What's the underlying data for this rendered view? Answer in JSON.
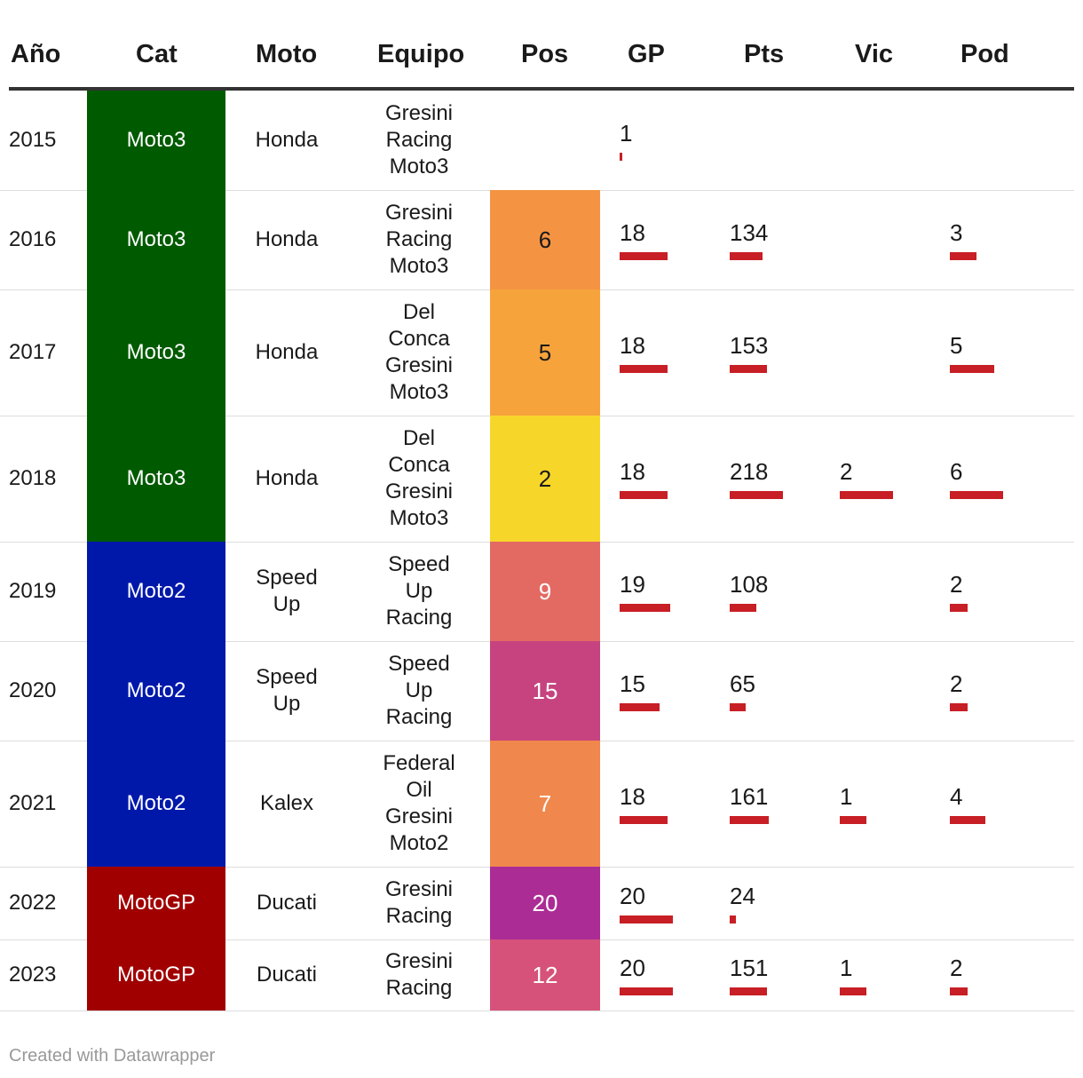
{
  "chart_data": {
    "type": "table",
    "columns": [
      "Año",
      "Cat",
      "Moto",
      "Equipo",
      "Pos",
      "GP",
      "Pts",
      "Vic",
      "Pod"
    ],
    "rows": [
      {
        "year": "2015",
        "cat": "Moto3",
        "moto": [
          "Honda"
        ],
        "team": [
          "Gresini",
          "Racing",
          "Moto3"
        ],
        "pos": "",
        "gp": 1,
        "pts": null,
        "vic": null,
        "pod": null
      },
      {
        "year": "2016",
        "cat": "Moto3",
        "moto": [
          "Honda"
        ],
        "team": [
          "Gresini",
          "Racing",
          "Moto3"
        ],
        "pos": "6",
        "gp": 18,
        "pts": 134,
        "vic": null,
        "pod": 3
      },
      {
        "year": "2017",
        "cat": "Moto3",
        "moto": [
          "Honda"
        ],
        "team": [
          "Del",
          "Conca",
          "Gresini",
          "Moto3"
        ],
        "pos": "5",
        "gp": 18,
        "pts": 153,
        "vic": null,
        "pod": 5
      },
      {
        "year": "2018",
        "cat": "Moto3",
        "moto": [
          "Honda"
        ],
        "team": [
          "Del",
          "Conca",
          "Gresini",
          "Moto3"
        ],
        "pos": "2",
        "gp": 18,
        "pts": 218,
        "vic": 2,
        "pod": 6
      },
      {
        "year": "2019",
        "cat": "Moto2",
        "moto": [
          "Speed",
          "Up"
        ],
        "team": [
          "Speed",
          "Up",
          "Racing"
        ],
        "pos": "9",
        "gp": 19,
        "pts": 108,
        "vic": null,
        "pod": 2
      },
      {
        "year": "2020",
        "cat": "Moto2",
        "moto": [
          "Speed",
          "Up"
        ],
        "team": [
          "Speed",
          "Up",
          "Racing"
        ],
        "pos": "15",
        "gp": 15,
        "pts": 65,
        "vic": null,
        "pod": 2
      },
      {
        "year": "2021",
        "cat": "Moto2",
        "moto": [
          "Kalex"
        ],
        "team": [
          "Federal",
          "Oil",
          "Gresini",
          "Moto2"
        ],
        "pos": "7",
        "gp": 18,
        "pts": 161,
        "vic": 1,
        "pod": 4
      },
      {
        "year": "2022",
        "cat": "MotoGP",
        "moto": [
          "Ducati"
        ],
        "team": [
          "Gresini",
          "Racing"
        ],
        "pos": "20",
        "gp": 20,
        "pts": 24,
        "vic": null,
        "pod": null
      },
      {
        "year": "2023",
        "cat": "MotoGP",
        "moto": [
          "Ducati"
        ],
        "team": [
          "Gresini",
          "Racing"
        ],
        "pos": "12",
        "gp": 20,
        "pts": 151,
        "vic": 1,
        "pod": 2
      }
    ],
    "bar_max": {
      "gp": 20,
      "pts": 218,
      "vic": 2,
      "pod": 6
    }
  },
  "colors": {
    "cat": {
      "Moto3": "#005a00",
      "Moto2": "#0018aa",
      "MotoGP": "#a00000"
    },
    "pos": {
      "2": "#f7d62a",
      "5": "#f6a33c",
      "6": "#f49443",
      "7": "#f0874c",
      "9": "#e36a62",
      "12": "#d6527a",
      "15": "#c64380",
      "20": "#ac2c95"
    },
    "bar": "#c71f25"
  },
  "footer": "Created with Datawrapper"
}
